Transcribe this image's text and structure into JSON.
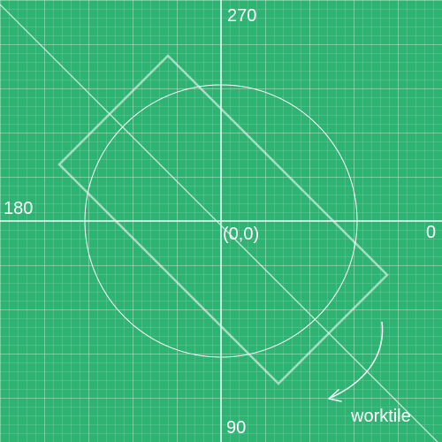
{
  "canvas": {
    "background_color": "#2db472",
    "grid_color": "#ffffff",
    "line_color": "#ffffff"
  },
  "axis_labels": {
    "top": "270",
    "left": "180",
    "right": "0",
    "bottom": "90",
    "origin": "(0,0)"
  },
  "brand": {
    "name": "worktile"
  },
  "icons": {
    "arrow": "curved-arrow-icon"
  }
}
